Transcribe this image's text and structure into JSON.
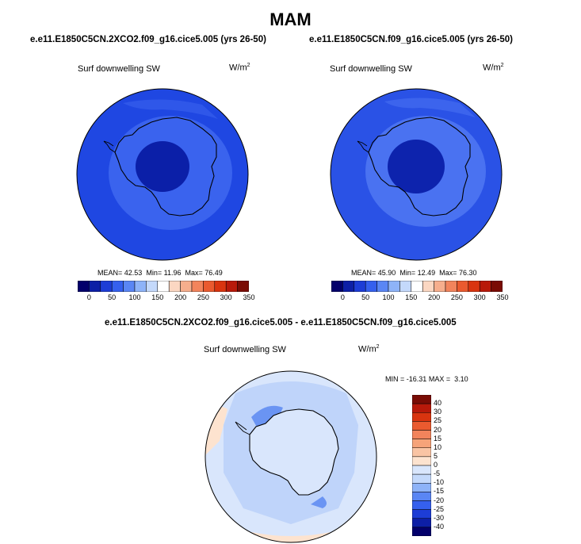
{
  "title": "MAM",
  "panels": [
    {
      "case": "e.e11.E1850C5CN.2XCO2.f09_g16.cice5.005 (yrs 26-50)",
      "variable": "Surf downwelling SW",
      "units": "W/m",
      "units_exp": "2",
      "stats": {
        "mean_label": "MEAN=",
        "mean": "42.53",
        "min_label": "Min=",
        "min": "11.96",
        "max_label": "Max=",
        "max": "76.49"
      }
    },
    {
      "case": "e.e11.E1850C5CN.f09_g16.cice5.005 (yrs 26-50)",
      "variable": "Surf downwelling SW",
      "units": "W/m",
      "units_exp": "2",
      "stats": {
        "mean_label": "MEAN=",
        "mean": "45.90",
        "min_label": "Min=",
        "min": "12.49",
        "max_label": "Max=",
        "max": "76.30"
      }
    }
  ],
  "diff": {
    "case": "e.e11.E1850C5CN.2XCO2.f09_g16.cice5.005 - e.e11.E1850C5CN.f09_g16.cice5.005",
    "variable": "Surf downwelling SW",
    "units": "W/m",
    "units_exp": "2",
    "stats": {
      "min_label": "MIN =",
      "min": "-16.31",
      "max_label": "MAX =",
      "max": "3.10"
    }
  },
  "colors": {
    "abs_scale": [
      "#03006b",
      "#0d1fa6",
      "#1d3dd6",
      "#3560ee",
      "#5a86f4",
      "#8eb3f8",
      "#c4d9fb",
      "#ffffff",
      "#fbd7c2",
      "#f6ae8d",
      "#f2845c",
      "#ea5a2f",
      "#d9340f",
      "#b8190a",
      "#7a0c05"
    ],
    "diff_scale": [
      "#03006b",
      "#0d1fa6",
      "#1d3dd6",
      "#3560ee",
      "#5a86f4",
      "#8eb3f8",
      "#c4d9fb",
      "#d9e6fc",
      "#fde3cf",
      "#f9c4a4",
      "#f6a379",
      "#f2845c",
      "#ea5a2f",
      "#d9340f",
      "#b8190a",
      "#7a0c05"
    ],
    "land_outline": "#000000",
    "panel1_ocean": "#1f47e2",
    "panel1_inner": "#0b1fa8",
    "panel1_ring": "#3a63ee",
    "panel2_ocean": "#2a52e6",
    "panel2_inner": "#0d23ad",
    "panel2_ring": "#4a72f1",
    "diff_base": "#d9e6fc",
    "diff_mid": "#a9c4f7",
    "diff_strong": "#6a94f3",
    "diff_warm": "#fde3cf"
  },
  "chart_data": [
    {
      "type": "heatmap",
      "projection": "south-polar-stereographic",
      "title": "e.e11.E1850C5CN.2XCO2.f09_g16.cice5.005 (yrs 26-50)",
      "variable": "Surf downwelling SW",
      "units": "W/m2",
      "mean": 42.53,
      "min": 11.96,
      "max": 76.49,
      "contour_levels": [
        0,
        50,
        100,
        150,
        200,
        250,
        300,
        350
      ],
      "colorbar_ticks": [
        "0",
        "50",
        "100",
        "150",
        "200",
        "250",
        "300",
        "350"
      ],
      "colorbar_orientation": "horizontal"
    },
    {
      "type": "heatmap",
      "projection": "south-polar-stereographic",
      "title": "e.e11.E1850C5CN.f09_g16.cice5.005 (yrs 26-50)",
      "variable": "Surf downwelling SW",
      "units": "W/m2",
      "mean": 45.9,
      "min": 12.49,
      "max": 76.3,
      "contour_levels": [
        0,
        50,
        100,
        150,
        200,
        250,
        300,
        350
      ],
      "colorbar_ticks": [
        "0",
        "50",
        "100",
        "150",
        "200",
        "250",
        "300",
        "350"
      ],
      "colorbar_orientation": "horizontal"
    },
    {
      "type": "heatmap",
      "projection": "south-polar-stereographic",
      "title": "e.e11.E1850C5CN.2XCO2.f09_g16.cice5.005 - e.e11.E1850C5CN.f09_g16.cice5.005",
      "variable": "Surf downwelling SW",
      "units": "W/m2",
      "min": -16.31,
      "max": 3.1,
      "contour_levels": [
        -40,
        -30,
        -25,
        -20,
        -15,
        -10,
        -5,
        0,
        5,
        10,
        15,
        20,
        25,
        30,
        40
      ],
      "colorbar_ticks": [
        "40",
        "30",
        "25",
        "20",
        "15",
        "10",
        "5",
        "0",
        "-5",
        "-10",
        "-15",
        "-20",
        "-25",
        "-30",
        "-40"
      ],
      "colorbar_orientation": "vertical"
    }
  ]
}
